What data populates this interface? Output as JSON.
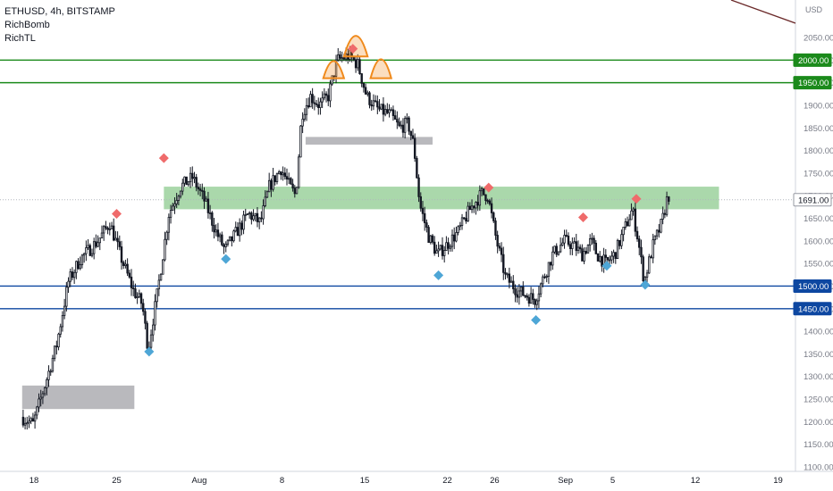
{
  "legend": {
    "symbol_line": "ETHUSD, 4h, BITSTAMP",
    "indicators": [
      "RichBomb",
      "RichTL"
    ]
  },
  "colors": {
    "up_candle": "#ffffff",
    "down_candle": "#131722",
    "resistance_line": "#1b8a1b",
    "support_line": "#0d47a1",
    "green_zone": "#a5d6a7",
    "gray_zone": "#b9b9bd",
    "top_marker": "#ef6b6b",
    "bottom_marker": "#4ea6d6",
    "pattern_arc": "#f08a1c",
    "trendline": "#6b2a2a",
    "last_price_bg": "#ffffff"
  },
  "chart_data": {
    "type": "candlestick",
    "symbol": "ETHUSD",
    "interval": "4h",
    "exchange": "BITSTAMP",
    "y_unit": "USD",
    "ylim": [
      1100,
      2120
    ],
    "y_ticks": [
      1100,
      1150,
      1200,
      1250,
      1300,
      1350,
      1400,
      1450,
      1500,
      1550,
      1600,
      1650,
      1700,
      1750,
      1800,
      1850,
      1900,
      1950,
      2000,
      2050
    ],
    "y_tick_labels": [
      "1100.00",
      "1150.00",
      "1200.00",
      "1250.00",
      "1300.00",
      "1350.00",
      "1400.00",
      "1450.00",
      "1500.00",
      "1550.00",
      "1600.00",
      "1650.00",
      "1700.00",
      "1750.00",
      "1800.00",
      "1850.00",
      "1900.00",
      "1950.00",
      "2000.00",
      "2050.00"
    ],
    "x_ticks": [
      "18",
      "25",
      "Aug",
      "8",
      "15",
      "22",
      "26",
      "Sep",
      "5",
      "12",
      "19"
    ],
    "x_tick_dates": [
      "2021-07-18",
      "2021-07-25",
      "2021-08-01",
      "2021-08-08",
      "2021-08-15",
      "2021-08-22",
      "2021-08-26",
      "2021-09-01",
      "2021-09-05",
      "2021-09-12",
      "2021-09-19"
    ],
    "last_price": 1691.0,
    "last_price_label": "1691.00",
    "price_path": [
      [
        "2021-07-17T00:00",
        1210
      ],
      [
        "2021-07-18T00:00",
        1195
      ],
      [
        "2021-07-19T00:00",
        1280
      ],
      [
        "2021-07-20T00:00",
        1370
      ],
      [
        "2021-07-21T00:00",
        1510
      ],
      [
        "2021-07-22T00:00",
        1560
      ],
      [
        "2021-07-23T12:00",
        1600
      ],
      [
        "2021-07-24T12:00",
        1640
      ],
      [
        "2021-07-25T12:00",
        1560
      ],
      [
        "2021-07-26T12:00",
        1490
      ],
      [
        "2021-07-27T06:00",
        1460
      ],
      [
        "2021-07-27T18:00",
        1360
      ],
      [
        "2021-07-28T12:00",
        1480
      ],
      [
        "2021-07-29T12:00",
        1660
      ],
      [
        "2021-07-30T12:00",
        1720
      ],
      [
        "2021-07-31T12:00",
        1740
      ],
      [
        "2021-08-01T12:00",
        1690
      ],
      [
        "2021-08-02T12:00",
        1620
      ],
      [
        "2021-08-03T06:00",
        1580
      ],
      [
        "2021-08-04T06:00",
        1620
      ],
      [
        "2021-08-05T06:00",
        1660
      ],
      [
        "2021-08-06T06:00",
        1640
      ],
      [
        "2021-08-07T00:00",
        1720
      ],
      [
        "2021-08-08T00:00",
        1760
      ],
      [
        "2021-08-08T18:00",
        1720
      ],
      [
        "2021-08-09T06:00",
        1700
      ],
      [
        "2021-08-09T18:00",
        1880
      ],
      [
        "2021-08-10T12:00",
        1920
      ],
      [
        "2021-08-11T06:00",
        1900
      ],
      [
        "2021-08-12T00:00",
        1920
      ],
      [
        "2021-08-12T18:00",
        2000
      ],
      [
        "2021-08-13T18:00",
        2010
      ],
      [
        "2021-08-14T12:00",
        1990
      ],
      [
        "2021-08-15T06:00",
        1920
      ],
      [
        "2021-08-16T06:00",
        1890
      ],
      [
        "2021-08-17T06:00",
        1880
      ],
      [
        "2021-08-18T00:00",
        1850
      ],
      [
        "2021-08-18T18:00",
        1860
      ],
      [
        "2021-08-19T06:00",
        1810
      ],
      [
        "2021-08-19T18:00",
        1680
      ],
      [
        "2021-08-20T12:00",
        1610
      ],
      [
        "2021-08-21T06:00",
        1570
      ],
      [
        "2021-08-22T00:00",
        1590
      ],
      [
        "2021-08-23T00:00",
        1620
      ],
      [
        "2021-08-24T00:00",
        1670
      ],
      [
        "2021-08-25T00:00",
        1705
      ],
      [
        "2021-08-25T12:00",
        1700
      ],
      [
        "2021-08-26T06:00",
        1600
      ],
      [
        "2021-08-27T00:00",
        1520
      ],
      [
        "2021-08-28T00:00",
        1490
      ],
      [
        "2021-08-28T18:00",
        1480
      ],
      [
        "2021-08-29T12:00",
        1470
      ],
      [
        "2021-08-30T06:00",
        1520
      ],
      [
        "2021-08-31T00:00",
        1570
      ],
      [
        "2021-09-01T00:00",
        1600
      ],
      [
        "2021-09-01T18:00",
        1590
      ],
      [
        "2021-09-02T12:00",
        1570
      ],
      [
        "2021-09-03T06:00",
        1600
      ],
      [
        "2021-09-03T18:00",
        1570
      ],
      [
        "2021-09-04T12:00",
        1550
      ],
      [
        "2021-09-05T06:00",
        1570
      ],
      [
        "2021-09-06T00:00",
        1620
      ],
      [
        "2021-09-06T18:00",
        1670
      ],
      [
        "2021-09-07T06:00",
        1600
      ],
      [
        "2021-09-07T18:00",
        1510
      ],
      [
        "2021-09-08T12:00",
        1590
      ],
      [
        "2021-09-09T06:00",
        1640
      ],
      [
        "2021-09-09T18:00",
        1700
      ]
    ],
    "horizontal_lines": [
      {
        "price": 2000,
        "label": "2000.00",
        "role": "resistance"
      },
      {
        "price": 1950,
        "label": "1950.00",
        "role": "resistance"
      },
      {
        "price": 1500,
        "label": "1500.00",
        "role": "support"
      },
      {
        "price": 1450,
        "label": "1450.00",
        "role": "support"
      }
    ],
    "zones": [
      {
        "role": "green_zone",
        "from": "2021-07-29T00:00",
        "to": "2021-09-14T00:00",
        "low": 1670,
        "high": 1720
      },
      {
        "role": "gray_zone",
        "from": "2021-08-10T00:00",
        "to": "2021-08-20T18:00",
        "low": 1813,
        "high": 1830
      },
      {
        "role": "gray_zone",
        "from": "2021-07-17T00:00",
        "to": "2021-07-26T12:00",
        "low": 1228,
        "high": 1280
      }
    ],
    "top_markers": [
      [
        "2021-07-25T00:00",
        1660
      ],
      [
        "2021-07-29T00:00",
        1783
      ],
      [
        "2021-08-14T00:00",
        2025
      ],
      [
        "2021-08-25T12:00",
        1718
      ],
      [
        "2021-09-02T12:00",
        1652
      ],
      [
        "2021-09-07T00:00",
        1693
      ]
    ],
    "bottom_markers": [
      [
        "2021-07-27T18:00",
        1355
      ],
      [
        "2021-08-03T06:00",
        1560
      ],
      [
        "2021-08-21T06:00",
        1524
      ],
      [
        "2021-08-29T12:00",
        1425
      ],
      [
        "2021-09-04T12:00",
        1545
      ],
      [
        "2021-09-07T18:00",
        1503
      ]
    ],
    "pattern_arcs": [
      {
        "from": "2021-08-11T12:00",
        "to": "2021-08-13T06:00",
        "base": 1960,
        "peak": 2000
      },
      {
        "from": "2021-08-13T06:00",
        "to": "2021-08-15T06:00",
        "base": 2008,
        "peak": 2056
      },
      {
        "from": "2021-08-15T12:00",
        "to": "2021-08-17T06:00",
        "base": 1960,
        "peak": 2004
      }
    ]
  }
}
